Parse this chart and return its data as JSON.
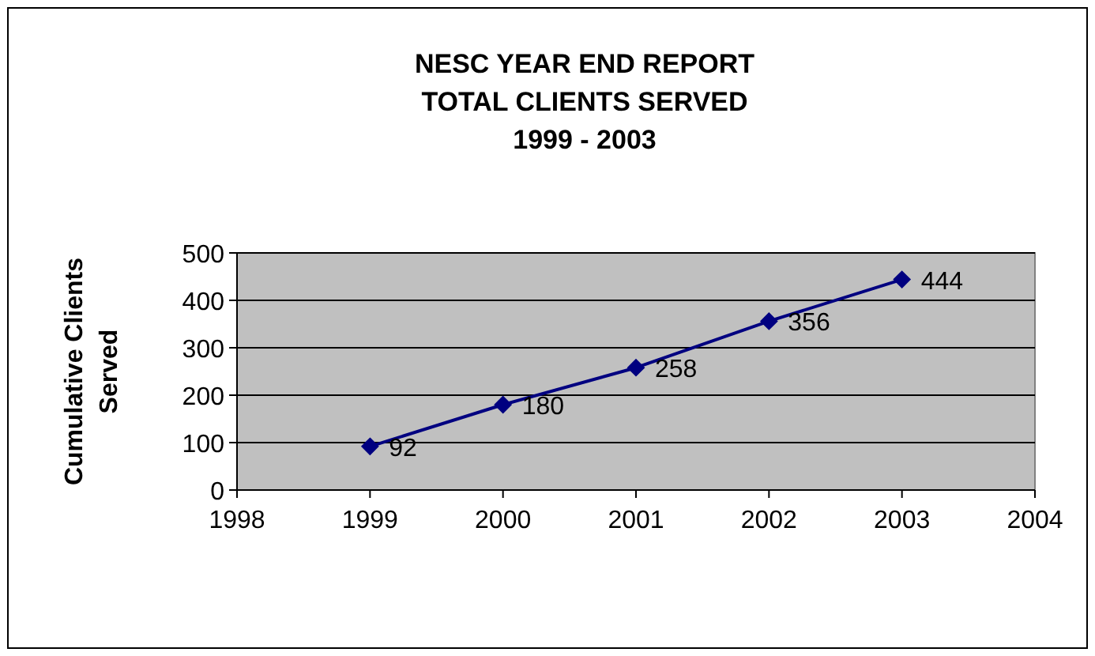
{
  "chart_data": {
    "type": "line",
    "title": "NESC YEAR END REPORT\nTOTAL CLIENTS SERVED\n1999 - 2003",
    "ylabel": "Cumulative Clients\nServed",
    "x": [
      1999,
      2000,
      2001,
      2002,
      2003
    ],
    "series": [
      {
        "color": "#000080",
        "values": [
          92,
          180,
          258,
          356,
          444
        ]
      }
    ],
    "xlim": [
      1998,
      2004
    ],
    "xticks": [
      1998,
      1999,
      2000,
      2001,
      2002,
      2003,
      2004
    ],
    "ylim": [
      0,
      500
    ],
    "yticks": [
      0,
      100,
      200,
      300,
      400,
      500
    ],
    "grid": "y",
    "marker": "diamond",
    "line_style": "solid",
    "data_labels": true
  }
}
